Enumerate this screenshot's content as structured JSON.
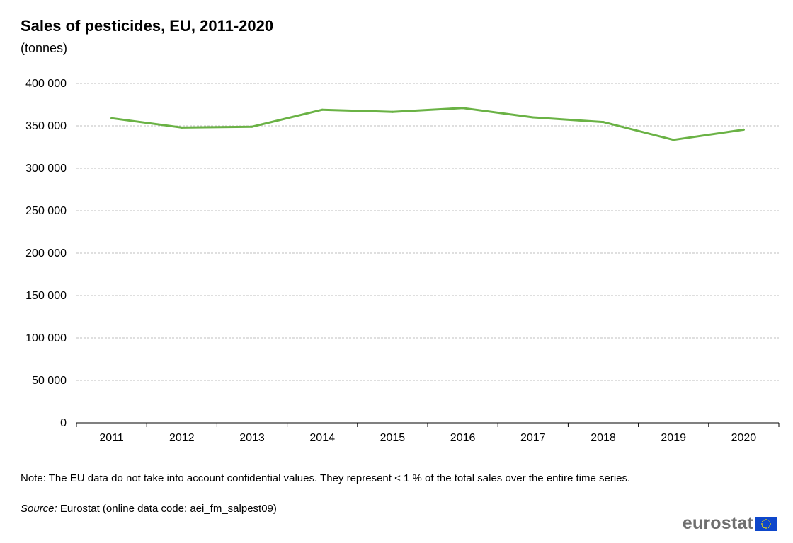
{
  "header": {
    "title": "Sales of pesticides, EU, 2011-2020",
    "subtitle": "(tonnes)"
  },
  "footer": {
    "note": "Note: The EU data do not take into account confidential values. They represent < 1 % of the total sales over the entire time series.",
    "source_label": "Source:",
    "source_text": " Eurostat (online data code: aei_fm_salpest09)",
    "logo_text": "eurostat",
    "logo_flag_icon": "eu-flag-icon"
  },
  "colors": {
    "line": "#6ab245",
    "grid": "#bfbfbf",
    "axis": "#000000",
    "logo_text": "#6f6f6f",
    "flag_blue": "#0e47cb",
    "flag_star": "#ffe500"
  },
  "chart_data": {
    "type": "line",
    "title": "Sales of pesticides, EU, 2011-2020",
    "subtitle": "(tonnes)",
    "xlabel": "",
    "ylabel": "",
    "categories": [
      "2011",
      "2012",
      "2013",
      "2014",
      "2015",
      "2016",
      "2017",
      "2018",
      "2019",
      "2020"
    ],
    "series": [
      {
        "values": [
          359000,
          348000,
          349000,
          369000,
          366500,
          371000,
          360000,
          354500,
          333500,
          345500
        ]
      }
    ],
    "ylim": [
      0,
      400000
    ],
    "y_ticks": [
      0,
      50000,
      100000,
      150000,
      200000,
      250000,
      300000,
      350000,
      400000
    ],
    "y_tick_labels": [
      "0",
      "50 000",
      "100 000",
      "150 000",
      "200 000",
      "250 000",
      "300 000",
      "350 000",
      "400 000"
    ],
    "grid": true,
    "legend": "none"
  }
}
